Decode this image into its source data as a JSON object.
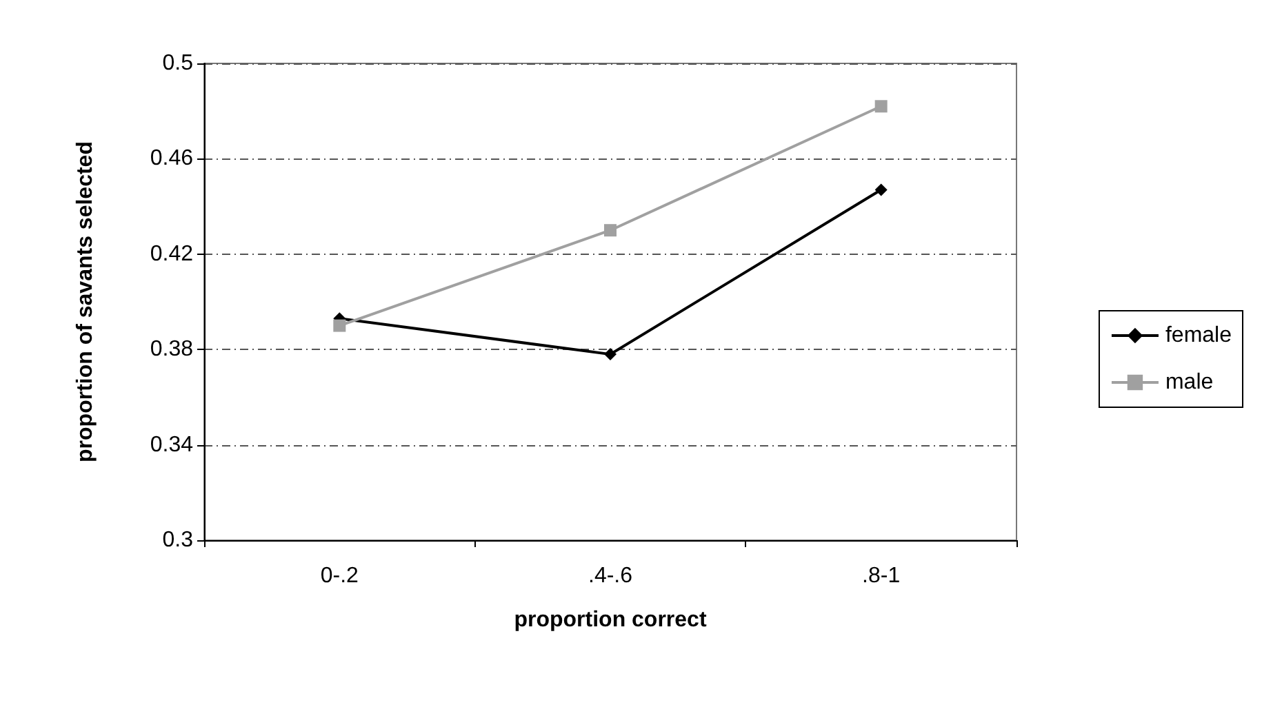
{
  "chart_data": {
    "type": "line",
    "xlabel": "proportion correct",
    "ylabel": "proportion of savants selected",
    "categories": [
      "0-.2",
      ".4-.6",
      ".8-1"
    ],
    "series": [
      {
        "name": "female",
        "color": "#000000",
        "marker": "diamond",
        "values": [
          0.393,
          0.378,
          0.447
        ]
      },
      {
        "name": "male",
        "color": "#a0a0a0",
        "marker": "square",
        "values": [
          0.39,
          0.43,
          0.482
        ]
      }
    ],
    "ylim": [
      0.3,
      0.5
    ],
    "yticks": [
      0.3,
      0.34,
      0.38,
      0.42,
      0.46,
      0.5
    ],
    "grid": "y",
    "legend": "right"
  }
}
